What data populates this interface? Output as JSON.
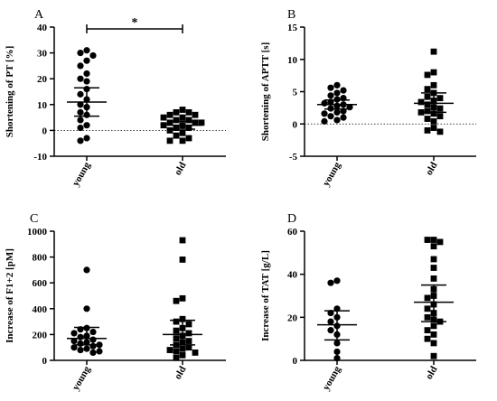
{
  "chart_data": [
    {
      "type": "scatter",
      "panel": "A",
      "ylabel": "Shortening of PT [%]",
      "categories": [
        "young",
        "old"
      ],
      "ylim": [
        -10,
        40
      ],
      "yticks": [
        -10,
        0,
        10,
        20,
        30,
        40
      ],
      "zero_line": true,
      "significance": "*",
      "series": [
        {
          "marker": "circle",
          "values": [
            31,
            30,
            29,
            27,
            25,
            22,
            20,
            19,
            16,
            14,
            12,
            10,
            9,
            7,
            6,
            4,
            2,
            1,
            -3,
            -4
          ],
          "mean": 11,
          "upper": 16.5,
          "lower": 5.5
        },
        {
          "marker": "square",
          "values": [
            8,
            7,
            7,
            6,
            6,
            5,
            5,
            4,
            4,
            3,
            3,
            3,
            2,
            2,
            1,
            1,
            0,
            -1,
            -2,
            -3,
            -4,
            -4
          ],
          "mean": 2,
          "upper": 3.5,
          "lower": 0.5
        }
      ]
    },
    {
      "type": "scatter",
      "panel": "B",
      "ylabel": "Shortening of APTT [s]",
      "categories": [
        "young",
        "old"
      ],
      "ylim": [
        -5,
        15
      ],
      "yticks": [
        -5,
        0,
        5,
        10,
        15
      ],
      "zero_line": true,
      "series": [
        {
          "marker": "circle",
          "values": [
            6,
            5.6,
            5.2,
            4.8,
            4.4,
            4,
            3.8,
            3.4,
            3.2,
            3,
            2.8,
            2.6,
            2.4,
            2,
            1.8,
            1.6,
            1.2,
            1,
            0.6,
            0.4
          ],
          "mean": 3,
          "upper": 3.7,
          "lower": 2.3
        },
        {
          "marker": "square",
          "values": [
            11.2,
            8,
            7.6,
            6,
            5.4,
            4.8,
            4.2,
            4,
            3.6,
            3.4,
            3,
            2.6,
            2.4,
            2,
            1.8,
            1.6,
            1.2,
            0.8,
            0.4,
            -0.6,
            -1,
            -1.2
          ],
          "mean": 3.2,
          "upper": 4.8,
          "lower": 1.8
        }
      ]
    },
    {
      "type": "scatter",
      "panel": "C",
      "ylabel": "Increase of F1+2 [pM]",
      "categories": [
        "young",
        "old"
      ],
      "ylim": [
        0,
        1000
      ],
      "yticks": [
        0,
        200,
        400,
        600,
        800,
        1000
      ],
      "zero_line": false,
      "series": [
        {
          "marker": "circle",
          "values": [
            700,
            400,
            250,
            240,
            220,
            210,
            190,
            180,
            160,
            150,
            140,
            130,
            120,
            110,
            100,
            90,
            80,
            70,
            60
          ],
          "mean": 170,
          "upper": 255,
          "lower": 120
        },
        {
          "marker": "square",
          "values": [
            930,
            780,
            480,
            460,
            320,
            300,
            280,
            250,
            230,
            210,
            190,
            170,
            150,
            140,
            120,
            100,
            90,
            80,
            70,
            60,
            40,
            20
          ],
          "mean": 200,
          "upper": 310,
          "lower": 120
        }
      ]
    },
    {
      "type": "scatter",
      "panel": "D",
      "ylabel": "Increase of TAT [g/L]",
      "categories": [
        "young",
        "old"
      ],
      "ylim": [
        0,
        60
      ],
      "yticks": [
        0,
        20,
        40,
        60
      ],
      "zero_line": false,
      "series": [
        {
          "marker": "circle",
          "values": [
            37,
            36,
            24,
            22,
            20,
            18,
            16,
            14,
            12,
            8,
            4,
            1
          ],
          "mean": 16.5,
          "upper": 23,
          "lower": 9.5
        },
        {
          "marker": "square",
          "values": [
            56,
            56,
            55,
            53,
            47,
            43,
            38,
            33,
            30,
            29,
            26,
            24,
            22,
            20,
            19,
            18,
            16,
            14,
            12,
            10,
            8,
            2
          ],
          "mean": 27,
          "upper": 35,
          "lower": 18
        }
      ]
    }
  ]
}
